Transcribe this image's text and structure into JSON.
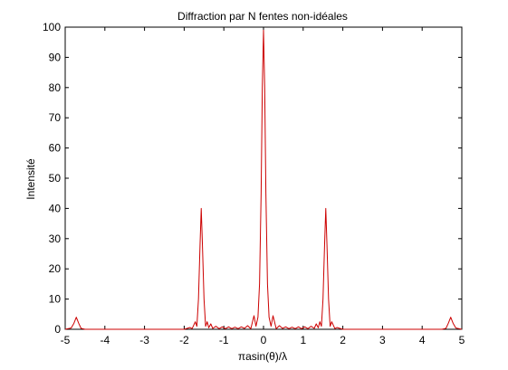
{
  "chart_data": {
    "type": "line",
    "title": "Diffraction par N fentes non-idéales",
    "xlabel": "πasin(θ)/λ",
    "ylabel": "Intensité",
    "xlim": [
      -5,
      5
    ],
    "ylim": [
      0,
      100
    ],
    "x_ticks": [
      -5,
      -4,
      -3,
      -2,
      -1,
      0,
      1,
      2,
      3,
      4,
      5
    ],
    "x_tick_labels": [
      "-5",
      "-4",
      "-3",
      "-2",
      "-1",
      "0",
      "1",
      "2",
      "3",
      "4",
      "5"
    ],
    "y_ticks": [
      0,
      10,
      20,
      30,
      40,
      50,
      60,
      70,
      80,
      90,
      100
    ],
    "y_tick_labels": [
      "0",
      "10",
      "20",
      "30",
      "40",
      "50",
      "60",
      "70",
      "80",
      "90",
      "100"
    ],
    "grid": false,
    "legend": "none",
    "series": [
      {
        "color": "#cc0000",
        "points": [
          [
            -5.0,
            0.0
          ],
          [
            -4.85,
            0.4
          ],
          [
            -4.78,
            2.0
          ],
          [
            -4.72,
            4.0
          ],
          [
            -4.66,
            2.0
          ],
          [
            -4.6,
            0.3
          ],
          [
            -4.5,
            0.0
          ],
          [
            -2.0,
            0.0
          ],
          [
            -1.85,
            0.6
          ],
          [
            -1.8,
            0.2
          ],
          [
            -1.72,
            2.5
          ],
          [
            -1.68,
            1.0
          ],
          [
            -1.64,
            10.0
          ],
          [
            -1.6,
            28.0
          ],
          [
            -1.57,
            40.0
          ],
          [
            -1.54,
            28.0
          ],
          [
            -1.5,
            10.0
          ],
          [
            -1.46,
            1.0
          ],
          [
            -1.42,
            2.5
          ],
          [
            -1.38,
            0.5
          ],
          [
            -1.33,
            1.8
          ],
          [
            -1.28,
            0.3
          ],
          [
            -1.2,
            1.0
          ],
          [
            -1.12,
            0.2
          ],
          [
            -1.04,
            0.8
          ],
          [
            -0.96,
            0.2
          ],
          [
            -0.88,
            0.8
          ],
          [
            -0.8,
            0.2
          ],
          [
            -0.72,
            0.7
          ],
          [
            -0.64,
            0.2
          ],
          [
            -0.56,
            0.8
          ],
          [
            -0.48,
            0.3
          ],
          [
            -0.4,
            1.2
          ],
          [
            -0.32,
            0.2
          ],
          [
            -0.24,
            4.5
          ],
          [
            -0.19,
            1.0
          ],
          [
            -0.14,
            4.0
          ],
          [
            -0.1,
            15.0
          ],
          [
            -0.06,
            45.0
          ],
          [
            -0.03,
            80.0
          ],
          [
            0.0,
            99.0
          ],
          [
            0.03,
            80.0
          ],
          [
            0.06,
            45.0
          ],
          [
            0.1,
            15.0
          ],
          [
            0.14,
            4.0
          ],
          [
            0.19,
            1.0
          ],
          [
            0.24,
            4.5
          ],
          [
            0.32,
            0.2
          ],
          [
            0.4,
            1.2
          ],
          [
            0.48,
            0.3
          ],
          [
            0.56,
            0.8
          ],
          [
            0.64,
            0.2
          ],
          [
            0.72,
            0.7
          ],
          [
            0.8,
            0.2
          ],
          [
            0.88,
            0.8
          ],
          [
            0.96,
            0.2
          ],
          [
            1.04,
            0.8
          ],
          [
            1.12,
            0.2
          ],
          [
            1.2,
            1.0
          ],
          [
            1.28,
            0.3
          ],
          [
            1.33,
            1.8
          ],
          [
            1.38,
            0.5
          ],
          [
            1.42,
            2.5
          ],
          [
            1.46,
            1.0
          ],
          [
            1.5,
            10.0
          ],
          [
            1.54,
            28.0
          ],
          [
            1.57,
            40.0
          ],
          [
            1.6,
            28.0
          ],
          [
            1.64,
            10.0
          ],
          [
            1.68,
            1.0
          ],
          [
            1.72,
            2.5
          ],
          [
            1.8,
            0.2
          ],
          [
            1.85,
            0.6
          ],
          [
            2.0,
            0.0
          ],
          [
            4.5,
            0.0
          ],
          [
            4.6,
            0.3
          ],
          [
            4.66,
            2.0
          ],
          [
            4.72,
            4.0
          ],
          [
            4.78,
            2.0
          ],
          [
            4.85,
            0.4
          ],
          [
            5.0,
            0.0
          ]
        ]
      }
    ]
  }
}
